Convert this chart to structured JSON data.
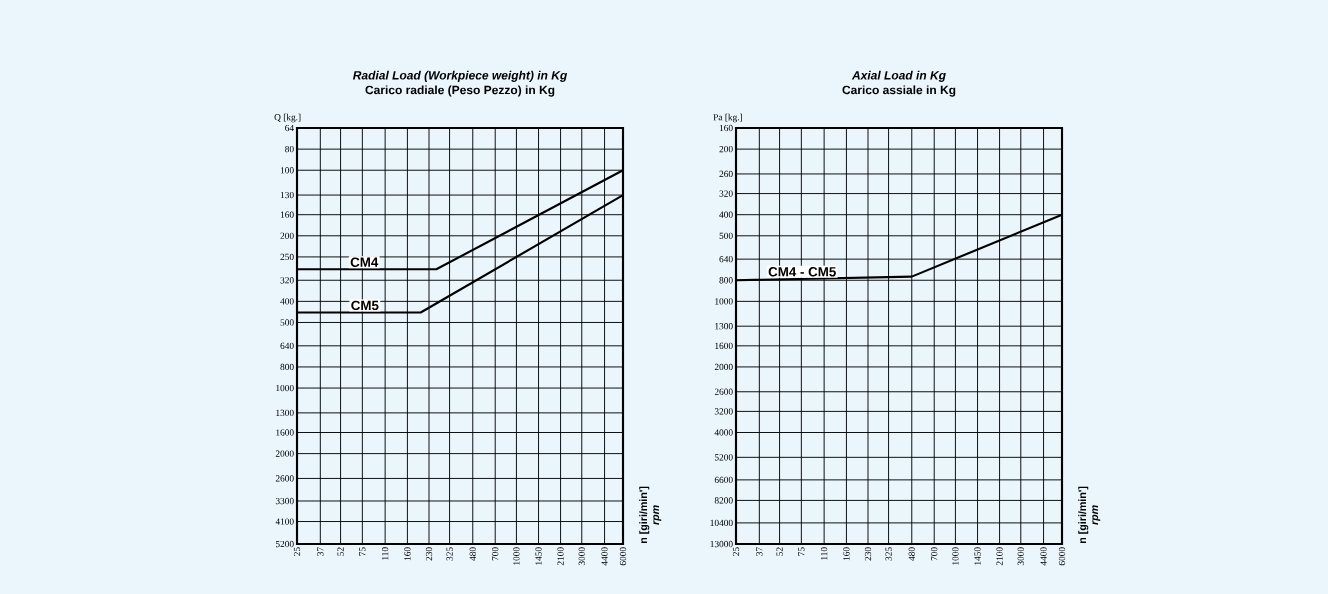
{
  "chart_data": [
    {
      "type": "line",
      "title": "Radial Load (Workpiece weight) in Kg",
      "subtitle": "Carico radiale (Peso Pezzo) in Kg",
      "ylabel": "Q [kg.]",
      "annotations": [
        "n [giri/min']",
        "rpm"
      ],
      "log": "xy",
      "grid": true,
      "marker": "none",
      "xlim": [
        25,
        6000
      ],
      "ylim": [
        5200,
        64
      ],
      "xticks": [
        25,
        37,
        52,
        75,
        110,
        160,
        230,
        325,
        480,
        700,
        1000,
        1450,
        2100,
        3000,
        4400,
        6000
      ],
      "yticks": [
        64,
        80,
        100,
        130,
        160,
        200,
        250,
        320,
        400,
        500,
        640,
        800,
        1000,
        1300,
        1600,
        2000,
        2600,
        3300,
        4100,
        5200
      ],
      "series": [
        {
          "name": "CM4",
          "color": "#000000",
          "x": [
            25,
            260,
            6000
          ],
          "values": [
            285,
            285,
            100
          ]
        },
        {
          "name": "CM5",
          "color": "#000000",
          "x": [
            25,
            200,
            6000
          ],
          "values": [
            450,
            450,
            130
          ]
        }
      ]
    },
    {
      "type": "line",
      "title": "Axial Load in Kg",
      "subtitle": "Carico assiale in Kg",
      "ylabel": "Pa [kg.]",
      "annotations": [
        "n [giri/min']",
        "rpm"
      ],
      "log": "xy",
      "grid": true,
      "marker": "none",
      "xlim": [
        25,
        6000
      ],
      "ylim": [
        13000,
        160
      ],
      "xticks": [
        25,
        37,
        52,
        75,
        110,
        160,
        230,
        325,
        480,
        700,
        1000,
        1450,
        2100,
        3000,
        4400,
        6000
      ],
      "yticks": [
        160,
        200,
        260,
        320,
        400,
        500,
        640,
        800,
        1000,
        1300,
        1600,
        2000,
        2600,
        3200,
        4000,
        5200,
        6600,
        8200,
        10400,
        13000
      ],
      "series": [
        {
          "name": "CM4 - CM5",
          "color": "#000000",
          "x": [
            25,
            480,
            6000
          ],
          "values": [
            800,
            770,
            400
          ]
        }
      ]
    }
  ]
}
